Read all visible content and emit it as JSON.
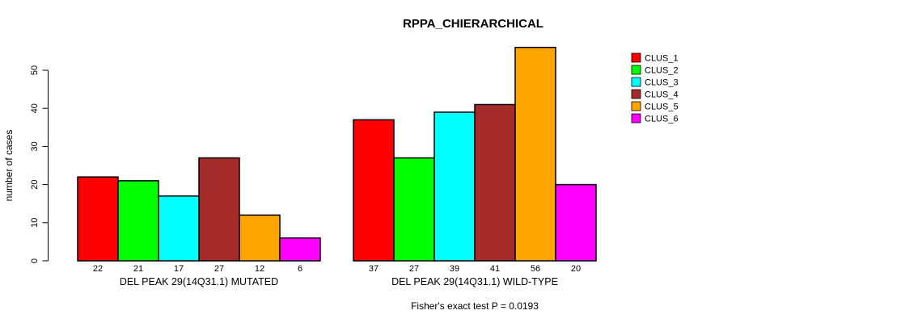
{
  "title": "RPPA_CHIERARCHICAL",
  "footnote": "Fisher's exact test P = 0.0193",
  "chart_data": {
    "type": "bar",
    "title": "RPPA_CHIERARCHICAL",
    "ylabel": "number of cases",
    "xlabel": "",
    "ylim": [
      0,
      56
    ],
    "yticks": [
      0,
      10,
      20,
      30,
      40,
      50
    ],
    "grid": false,
    "legend_position": "right",
    "bar_value_labels": true,
    "categories": [
      "DEL PEAK 29(14Q31.1) MUTATED",
      "DEL PEAK 29(14Q31.1) WILD-TYPE"
    ],
    "series": [
      {
        "name": "CLUS_1",
        "color": "#FF0000",
        "values": [
          22,
          37
        ]
      },
      {
        "name": "CLUS_2",
        "color": "#00FF00",
        "values": [
          21,
          27
        ]
      },
      {
        "name": "CLUS_3",
        "color": "#00FFFF",
        "values": [
          17,
          39
        ]
      },
      {
        "name": "CLUS_4",
        "color": "#A52A2A",
        "values": [
          27,
          41
        ]
      },
      {
        "name": "CLUS_5",
        "color": "#FFA500",
        "values": [
          12,
          56
        ]
      },
      {
        "name": "CLUS_6",
        "color": "#FF00FF",
        "values": [
          6,
          20
        ]
      }
    ],
    "annotation": "Fisher's exact test P = 0.0193"
  }
}
